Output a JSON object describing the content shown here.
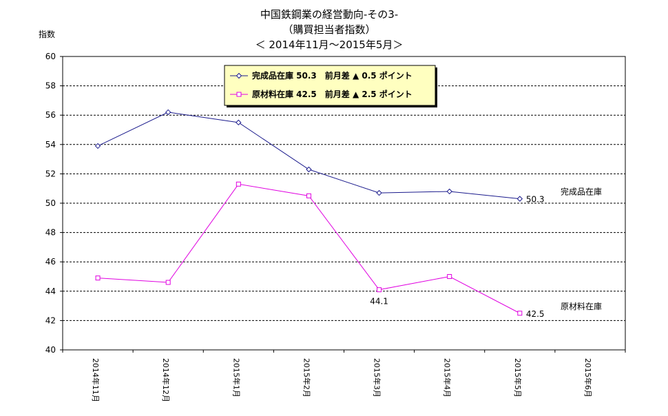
{
  "chart_data": {
    "type": "line",
    "title": [
      "中国鉄鋼業の経営動向-その3-",
      "（購買担当者指数）",
      "＜ 2014年11月～2015年5月＞"
    ],
    "ylabel": "指数",
    "ylim": [
      40,
      60
    ],
    "yticks": [
      40,
      42,
      44,
      46,
      48,
      50,
      52,
      54,
      56,
      58,
      60
    ],
    "grid": true,
    "legend_position": "top-center",
    "categories": [
      "2014年11月",
      "2014年12月",
      "2015年1月",
      "2015年2月",
      "2015年3月",
      "2015年4月",
      "2015年5月",
      "2015年6月"
    ],
    "series": [
      {
        "name": "完成品在庫",
        "legend": "完成品在庫 50.3　前月差 ▲ 0.5 ポイント",
        "values": [
          53.9,
          56.2,
          55.5,
          52.3,
          50.7,
          50.8,
          50.3,
          null
        ],
        "color": "#1a1a8c",
        "marker": "diamond",
        "end_label": "完成品在庫",
        "point_labels": [
          {
            "index": 6,
            "text": "50.3"
          }
        ]
      },
      {
        "name": "原材料在庫",
        "legend": "原材料在庫 42.5　前月差 ▲ 2.5 ポイント",
        "values": [
          44.9,
          44.6,
          51.3,
          50.5,
          44.1,
          45.0,
          42.5,
          null
        ],
        "color": "#e000e0",
        "marker": "square",
        "end_label": "原材料在庫",
        "point_labels": [
          {
            "index": 4,
            "text": "44.1"
          },
          {
            "index": 6,
            "text": "42.5"
          }
        ]
      }
    ],
    "legend_bg": "#ffffc0"
  }
}
